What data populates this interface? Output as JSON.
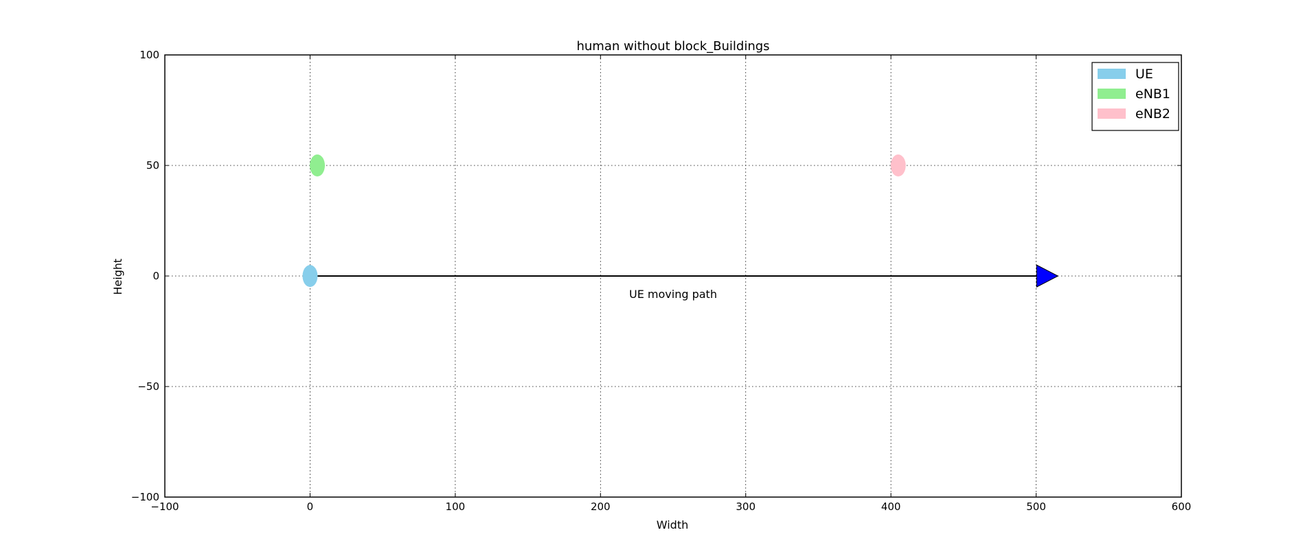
{
  "chart_data": {
    "type": "scatter",
    "title": "human without block_Buildings",
    "xlabel": "Width",
    "ylabel": "Height",
    "xlim": [
      -100,
      600
    ],
    "ylim": [
      -100,
      100
    ],
    "xticks": [
      -100,
      0,
      100,
      200,
      300,
      400,
      500,
      600
    ],
    "yticks": [
      -100,
      -50,
      0,
      50,
      100
    ],
    "xtick_labels": [
      "−100",
      "0",
      "100",
      "200",
      "300",
      "400",
      "500",
      "600"
    ],
    "ytick_labels": [
      "−100",
      "−50",
      "0",
      "50",
      "100"
    ],
    "grid": true,
    "legend_position": "top-right",
    "series": [
      {
        "name": "UE",
        "color": "#87CEEB",
        "points": [
          {
            "x": 0,
            "y": 0
          }
        ]
      },
      {
        "name": "eNB1",
        "color": "#90EE90",
        "points": [
          {
            "x": 5,
            "y": 50
          }
        ]
      },
      {
        "name": "eNB2",
        "color": "#FFC0CB",
        "points": [
          {
            "x": 405,
            "y": 50
          }
        ]
      }
    ],
    "arrow": {
      "from": {
        "x": 0,
        "y": 0
      },
      "to": {
        "x": 515,
        "y": 0
      },
      "head_color": "#0000FF",
      "line_color": "#000000"
    },
    "annotations": [
      {
        "text": "UE moving path",
        "x": 250,
        "y": -8
      }
    ]
  }
}
